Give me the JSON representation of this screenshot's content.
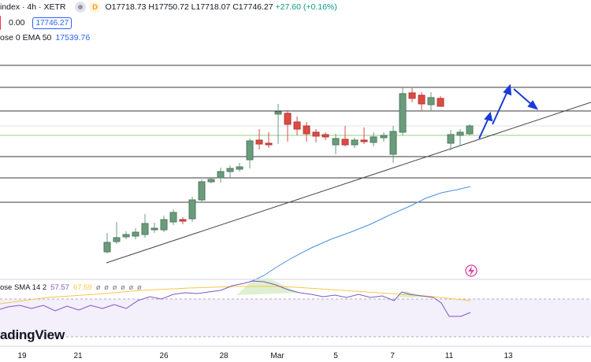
{
  "legend": {
    "symbol": "index · 4h · XETR",
    "icon_a": "",
    "icon_b": "D",
    "open": "O17718.73",
    "high": "H17750.72",
    "low": "L17718.07",
    "close": "C17746.27",
    "change": "+27.60 (+0.16%)",
    "zero": "0.00",
    "price_box": "17746.27",
    "ema_label": "ose 0 EMA 50",
    "ema_value": "17539.76"
  },
  "oscillator_legend": {
    "label": "ose SMA 14 2",
    "value_a": "57.57",
    "value_b": "67.59",
    "dots": "ø ø ø ø ø ø"
  },
  "x_axis": {
    "labels": [
      "19",
      "21",
      "26",
      "28",
      "Mar",
      "5",
      "7",
      "11",
      "13"
    ]
  },
  "watermark": "adingView",
  "colors": {
    "up": "#6a9c7c",
    "down": "#de4b44",
    "ema": "#4a90e2",
    "trendline": "#454545",
    "arrow": "#1a3ad8",
    "rsi": "#7e57c2",
    "rsi_ma": "#f7c843"
  },
  "icons": {
    "flash": "flash-icon"
  }
}
